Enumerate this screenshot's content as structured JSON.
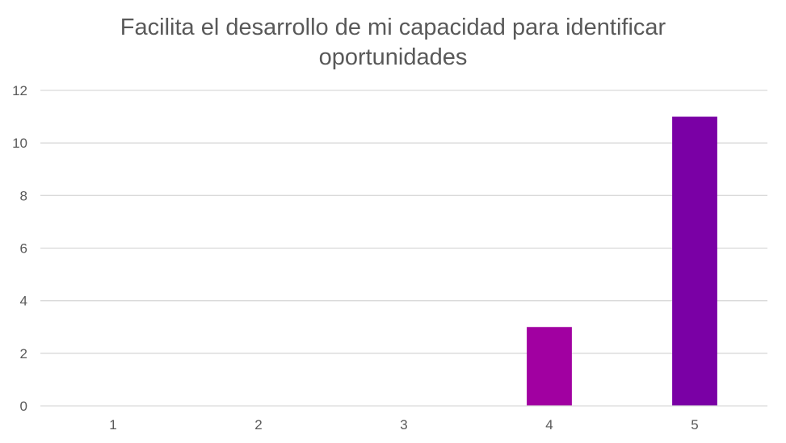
{
  "chart_data": {
    "type": "bar",
    "title_lines": [
      "Facilita el desarrollo de mi capacidad para identificar",
      "oportunidades"
    ],
    "categories": [
      "1",
      "2",
      "3",
      "4",
      "5"
    ],
    "values": [
      0,
      0,
      0,
      3,
      11
    ],
    "bar_colors": [
      "#a100a1",
      "#a100a1",
      "#a100a1",
      "#a100a1",
      "#7a00a5"
    ],
    "ylim": [
      0,
      12
    ],
    "y_ticks": [
      "0",
      "2",
      "4",
      "6",
      "8",
      "10",
      "12"
    ],
    "grid": true,
    "legend": "none"
  }
}
